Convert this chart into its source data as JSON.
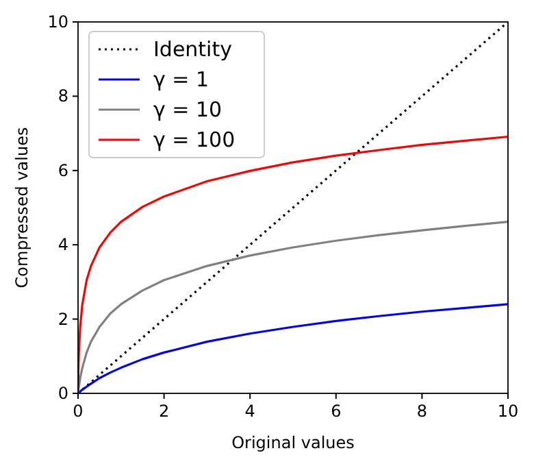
{
  "chart_data": {
    "type": "line",
    "xlabel": "Original values",
    "ylabel": "Compressed values",
    "xlim": [
      0,
      10
    ],
    "ylim": [
      0,
      10
    ],
    "xticks": [
      0,
      2,
      4,
      6,
      8,
      10
    ],
    "yticks": [
      0,
      2,
      4,
      6,
      8,
      10
    ],
    "grid": false,
    "legend": "top left",
    "marker": "none",
    "series": [
      {
        "name": "Identity",
        "color": "#000000",
        "line_style": "dotted",
        "x": [
          0,
          10
        ],
        "values": [
          0,
          10
        ]
      },
      {
        "name": "γ = 1",
        "color": "#0000ff",
        "line_style": "solid",
        "x": [
          0,
          0.01,
          0.02,
          0.05,
          0.1,
          0.2,
          0.3,
          0.5,
          0.75,
          1,
          1.5,
          2,
          3,
          4,
          5,
          6,
          7,
          8,
          9,
          10
        ],
        "values": [
          0,
          0.01,
          0.02,
          0.05,
          0.1,
          0.18,
          0.26,
          0.41,
          0.56,
          0.69,
          0.92,
          1.1,
          1.39,
          1.61,
          1.79,
          1.95,
          2.08,
          2.2,
          2.3,
          2.4
        ]
      },
      {
        "name": "γ = 10",
        "color": "#808080",
        "line_style": "solid",
        "x": [
          0,
          0.01,
          0.02,
          0.05,
          0.1,
          0.2,
          0.3,
          0.5,
          0.75,
          1,
          1.5,
          2,
          3,
          4,
          5,
          6,
          7,
          8,
          9,
          10
        ],
        "values": [
          0,
          0.1,
          0.18,
          0.41,
          0.69,
          1.1,
          1.39,
          1.79,
          2.15,
          2.4,
          2.77,
          3.05,
          3.43,
          3.71,
          3.93,
          4.11,
          4.26,
          4.39,
          4.51,
          4.62
        ]
      },
      {
        "name": "γ = 100",
        "color": "#ff0000",
        "line_style": "solid",
        "x": [
          0,
          0.01,
          0.02,
          0.05,
          0.1,
          0.2,
          0.3,
          0.5,
          0.75,
          1,
          1.5,
          2,
          3,
          4,
          5,
          6,
          7,
          8,
          9,
          10
        ],
        "values": [
          0,
          0.69,
          1.1,
          1.79,
          2.4,
          3.05,
          3.43,
          3.93,
          4.33,
          4.62,
          5.02,
          5.3,
          5.71,
          5.99,
          6.22,
          6.4,
          6.55,
          6.69,
          6.8,
          6.91
        ]
      }
    ]
  }
}
